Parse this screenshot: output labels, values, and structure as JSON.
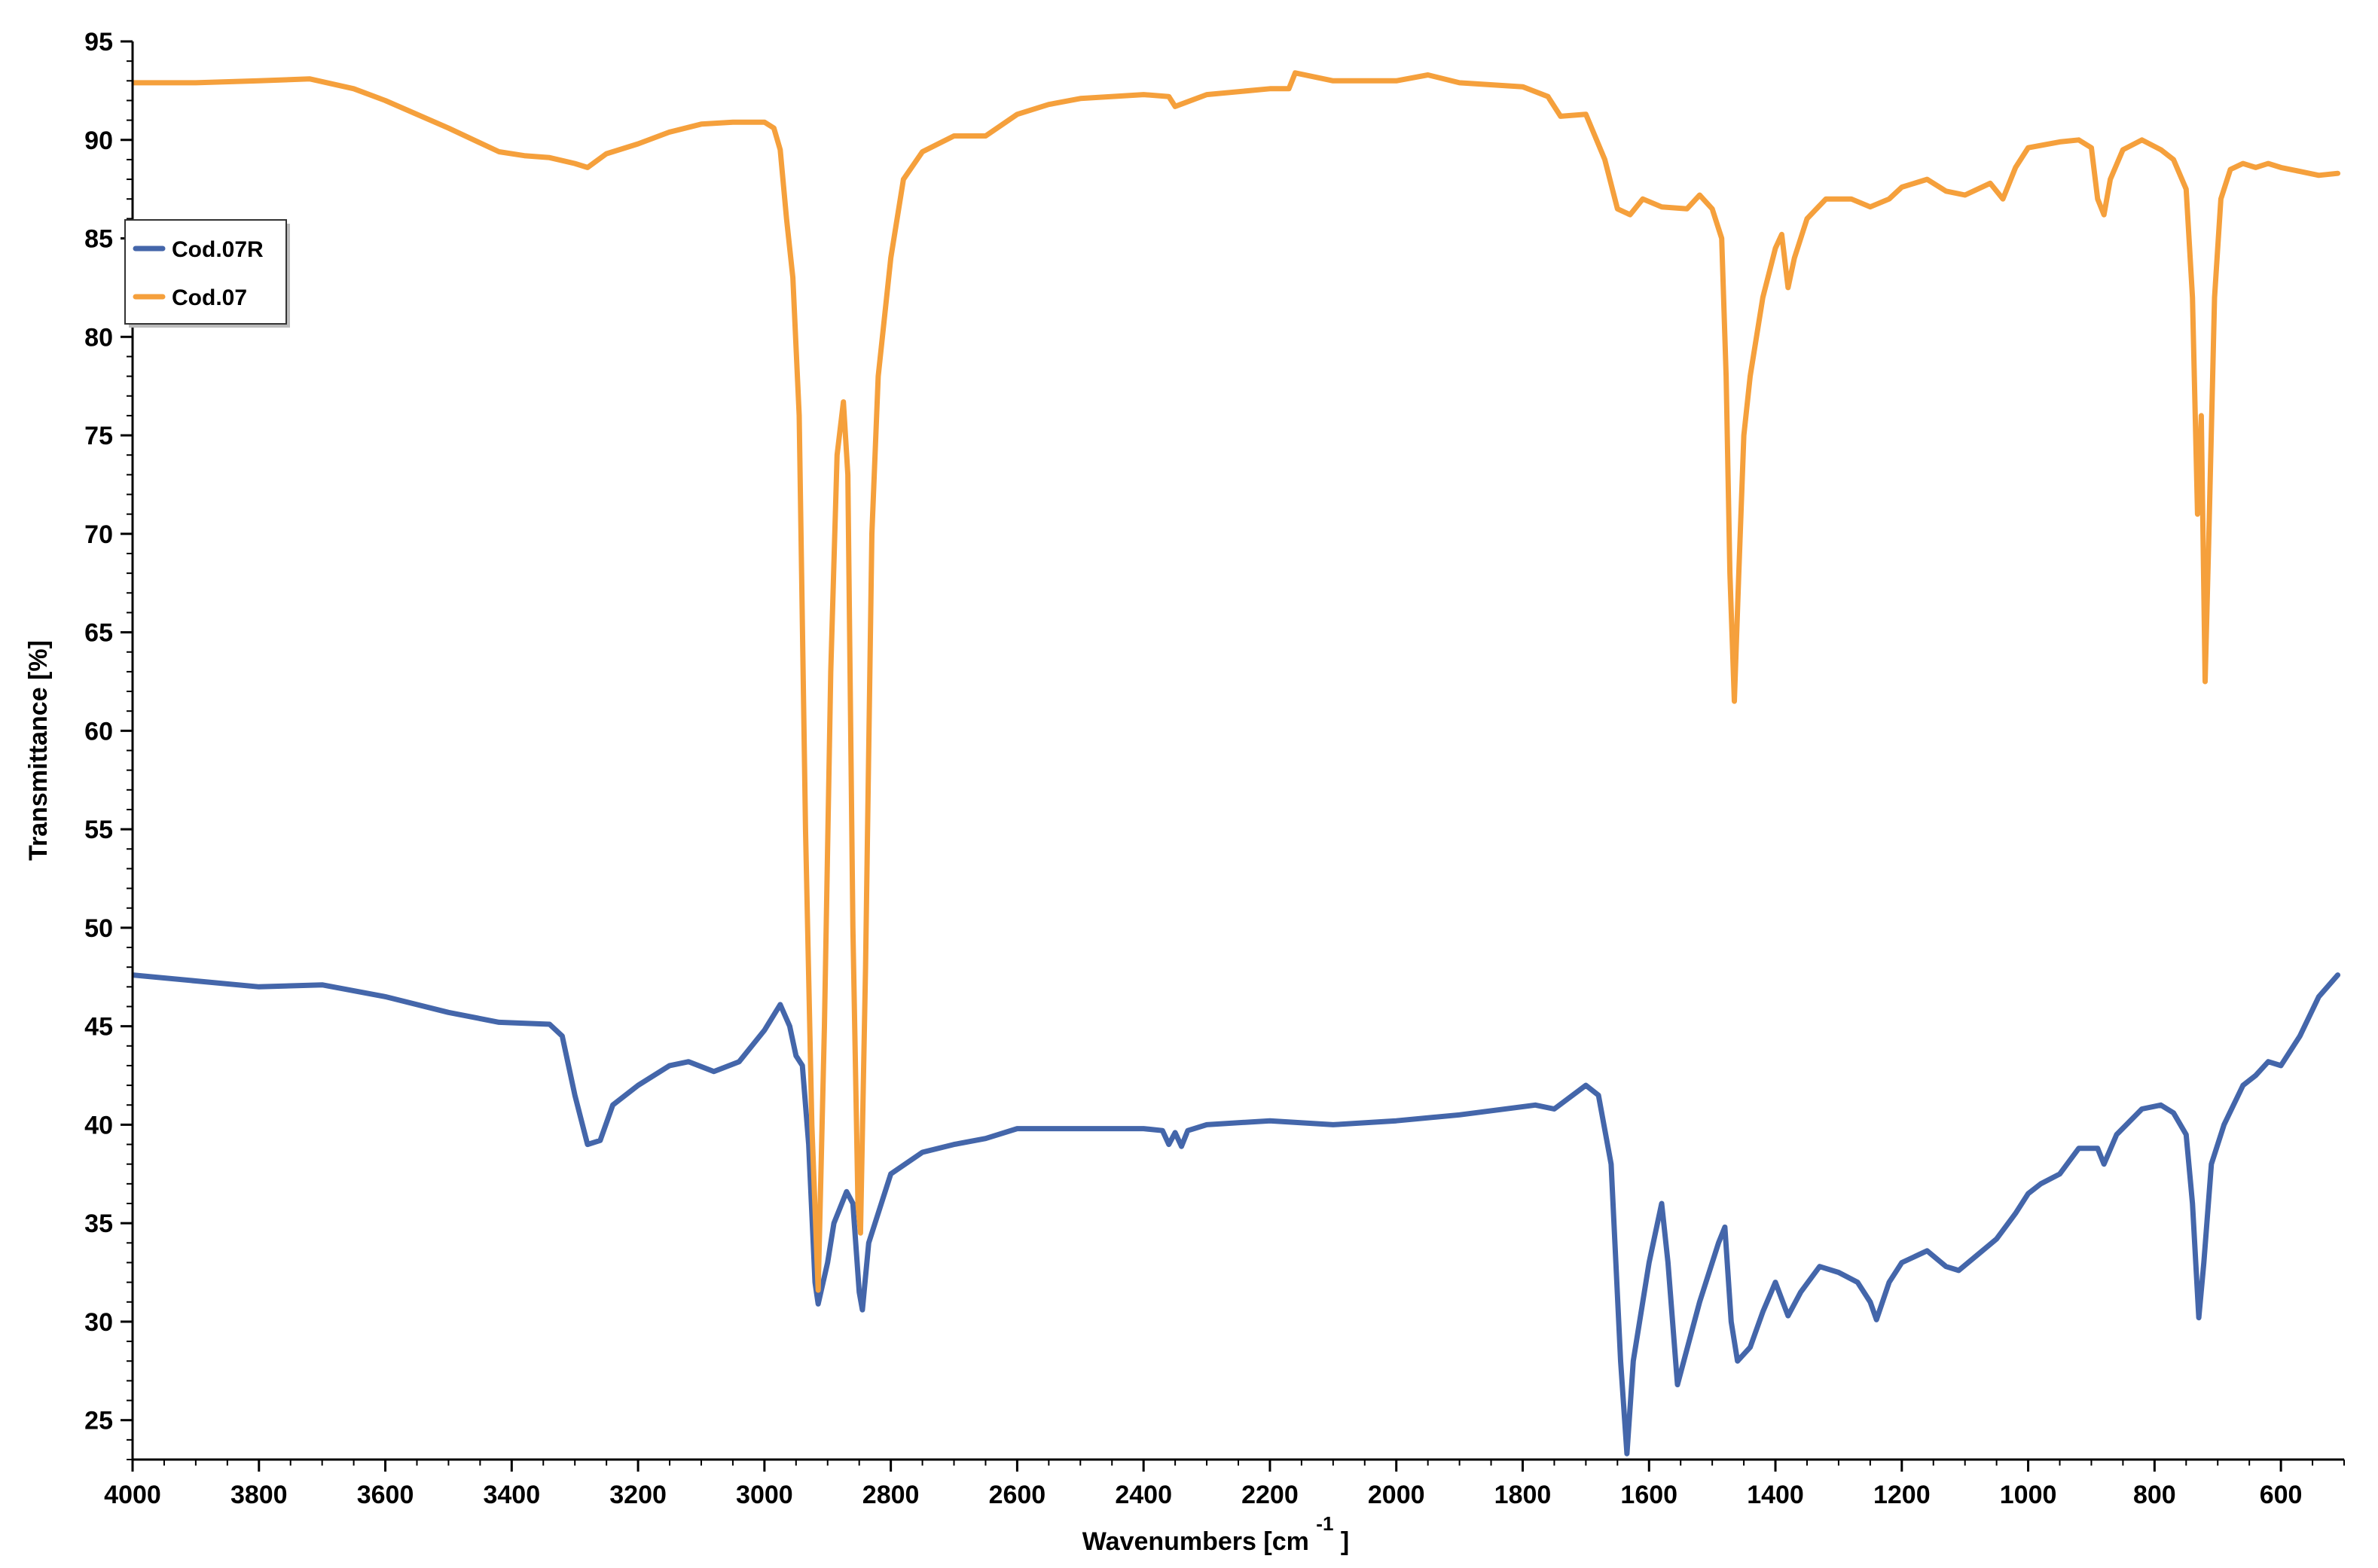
{
  "chart_data": {
    "type": "line",
    "title": "",
    "xlabel": "Wavenumbers [cm",
    "xlabel_superscript": "-1",
    "xlabel_suffix": "]",
    "ylabel": "Transmittance [%]",
    "xlim": [
      4000,
      500
    ],
    "ylim": [
      23,
      95
    ],
    "x_reversed": true,
    "x_ticks": [
      "4000",
      "3800",
      "3600",
      "3400",
      "3200",
      "3000",
      "2800",
      "2600",
      "2400",
      "2200",
      "2000",
      "1800",
      "1600",
      "1400",
      "1200",
      "1000",
      "800",
      "600"
    ],
    "x_tick_values": [
      4000,
      3800,
      3600,
      3400,
      3200,
      3000,
      2800,
      2600,
      2400,
      2200,
      2000,
      1800,
      1600,
      1400,
      1200,
      1000,
      800,
      600
    ],
    "y_ticks": [
      "25",
      "30",
      "35",
      "40",
      "45",
      "50",
      "55",
      "60",
      "65",
      "70",
      "75",
      "80",
      "85",
      "90",
      "95"
    ],
    "y_tick_values": [
      25,
      30,
      35,
      40,
      45,
      50,
      55,
      60,
      65,
      70,
      75,
      80,
      85,
      90,
      95
    ],
    "grid": false,
    "legend": {
      "position": "top-left",
      "entries": [
        "Cod.07R",
        "Cod.07"
      ]
    },
    "series": [
      {
        "name": "Cod.07R",
        "color": "#4466aa",
        "points": [
          [
            4000,
            47.6
          ],
          [
            3900,
            47.3
          ],
          [
            3800,
            47.0
          ],
          [
            3700,
            47.1
          ],
          [
            3600,
            46.5
          ],
          [
            3500,
            45.7
          ],
          [
            3420,
            45.2
          ],
          [
            3340,
            45.1
          ],
          [
            3320,
            44.5
          ],
          [
            3300,
            41.5
          ],
          [
            3280,
            39.0
          ],
          [
            3260,
            39.2
          ],
          [
            3240,
            41.0
          ],
          [
            3200,
            42.0
          ],
          [
            3150,
            43.0
          ],
          [
            3120,
            43.2
          ],
          [
            3080,
            42.7
          ],
          [
            3040,
            43.2
          ],
          [
            3000,
            44.8
          ],
          [
            2975,
            46.1
          ],
          [
            2960,
            45.0
          ],
          [
            2950,
            43.5
          ],
          [
            2940,
            43.0
          ],
          [
            2930,
            39.0
          ],
          [
            2920,
            32.0
          ],
          [
            2915,
            30.9
          ],
          [
            2900,
            33.0
          ],
          [
            2890,
            35.0
          ],
          [
            2870,
            36.6
          ],
          [
            2860,
            36.0
          ],
          [
            2850,
            31.5
          ],
          [
            2845,
            30.6
          ],
          [
            2835,
            34.0
          ],
          [
            2800,
            37.5
          ],
          [
            2750,
            38.6
          ],
          [
            2700,
            39.0
          ],
          [
            2650,
            39.3
          ],
          [
            2600,
            39.8
          ],
          [
            2500,
            39.8
          ],
          [
            2400,
            39.8
          ],
          [
            2370,
            39.7
          ],
          [
            2360,
            39.0
          ],
          [
            2350,
            39.6
          ],
          [
            2340,
            38.9
          ],
          [
            2330,
            39.7
          ],
          [
            2300,
            40.0
          ],
          [
            2200,
            40.2
          ],
          [
            2100,
            40.0
          ],
          [
            2000,
            40.2
          ],
          [
            1900,
            40.5
          ],
          [
            1780,
            41.0
          ],
          [
            1750,
            40.8
          ],
          [
            1700,
            42.0
          ],
          [
            1680,
            41.5
          ],
          [
            1660,
            38.0
          ],
          [
            1645,
            28.0
          ],
          [
            1635,
            23.3
          ],
          [
            1625,
            28.0
          ],
          [
            1600,
            33.0
          ],
          [
            1580,
            36.0
          ],
          [
            1570,
            33.0
          ],
          [
            1555,
            26.8
          ],
          [
            1545,
            28.0
          ],
          [
            1520,
            31.0
          ],
          [
            1490,
            34.0
          ],
          [
            1480,
            34.8
          ],
          [
            1470,
            30.0
          ],
          [
            1460,
            28.0
          ],
          [
            1440,
            28.7
          ],
          [
            1420,
            30.5
          ],
          [
            1400,
            32.0
          ],
          [
            1380,
            30.3
          ],
          [
            1360,
            31.5
          ],
          [
            1330,
            32.8
          ],
          [
            1300,
            32.5
          ],
          [
            1270,
            32.0
          ],
          [
            1250,
            31.0
          ],
          [
            1240,
            30.1
          ],
          [
            1220,
            32.0
          ],
          [
            1200,
            33.0
          ],
          [
            1160,
            33.6
          ],
          [
            1130,
            32.8
          ],
          [
            1110,
            32.6
          ],
          [
            1080,
            33.4
          ],
          [
            1050,
            34.2
          ],
          [
            1020,
            35.5
          ],
          [
            1000,
            36.5
          ],
          [
            980,
            37.0
          ],
          [
            950,
            37.5
          ],
          [
            920,
            38.8
          ],
          [
            890,
            38.8
          ],
          [
            880,
            38.0
          ],
          [
            860,
            39.5
          ],
          [
            820,
            40.8
          ],
          [
            790,
            41.0
          ],
          [
            770,
            40.6
          ],
          [
            750,
            39.5
          ],
          [
            740,
            36.0
          ],
          [
            730,
            30.2
          ],
          [
            722,
            33.0
          ],
          [
            710,
            38.0
          ],
          [
            690,
            40.0
          ],
          [
            660,
            42.0
          ],
          [
            640,
            42.5
          ],
          [
            620,
            43.2
          ],
          [
            600,
            43.0
          ],
          [
            570,
            44.5
          ],
          [
            540,
            46.5
          ],
          [
            510,
            47.6
          ]
        ]
      },
      {
        "name": "Cod.07",
        "color": "#f5a03c",
        "points": [
          [
            4000,
            92.9
          ],
          [
            3900,
            92.9
          ],
          [
            3800,
            93.0
          ],
          [
            3720,
            93.1
          ],
          [
            3650,
            92.6
          ],
          [
            3600,
            92.0
          ],
          [
            3500,
            90.6
          ],
          [
            3420,
            89.4
          ],
          [
            3380,
            89.2
          ],
          [
            3340,
            89.1
          ],
          [
            3300,
            88.8
          ],
          [
            3280,
            88.6
          ],
          [
            3250,
            89.3
          ],
          [
            3200,
            89.8
          ],
          [
            3150,
            90.4
          ],
          [
            3100,
            90.8
          ],
          [
            3050,
            90.9
          ],
          [
            3000,
            90.9
          ],
          [
            2985,
            90.6
          ],
          [
            2975,
            89.5
          ],
          [
            2965,
            86.0
          ],
          [
            2955,
            83.0
          ],
          [
            2945,
            76.0
          ],
          [
            2935,
            55.0
          ],
          [
            2925,
            40.0
          ],
          [
            2915,
            31.6
          ],
          [
            2905,
            45.0
          ],
          [
            2895,
            63.0
          ],
          [
            2885,
            74.0
          ],
          [
            2875,
            76.7
          ],
          [
            2868,
            73.0
          ],
          [
            2860,
            50.0
          ],
          [
            2852,
            36.0
          ],
          [
            2848,
            34.5
          ],
          [
            2840,
            48.0
          ],
          [
            2830,
            70.0
          ],
          [
            2820,
            78.0
          ],
          [
            2800,
            84.0
          ],
          [
            2780,
            88.0
          ],
          [
            2750,
            89.4
          ],
          [
            2700,
            90.2
          ],
          [
            2650,
            90.2
          ],
          [
            2600,
            91.3
          ],
          [
            2550,
            91.8
          ],
          [
            2500,
            92.1
          ],
          [
            2400,
            92.3
          ],
          [
            2360,
            92.2
          ],
          [
            2350,
            91.7
          ],
          [
            2300,
            92.3
          ],
          [
            2200,
            92.6
          ],
          [
            2170,
            92.6
          ],
          [
            2160,
            93.4
          ],
          [
            2100,
            93.0
          ],
          [
            2000,
            93.0
          ],
          [
            1950,
            93.3
          ],
          [
            1900,
            92.9
          ],
          [
            1800,
            92.7
          ],
          [
            1760,
            92.2
          ],
          [
            1740,
            91.2
          ],
          [
            1700,
            91.3
          ],
          [
            1670,
            89.0
          ],
          [
            1650,
            86.5
          ],
          [
            1630,
            86.2
          ],
          [
            1610,
            87.0
          ],
          [
            1580,
            86.6
          ],
          [
            1540,
            86.5
          ],
          [
            1520,
            87.2
          ],
          [
            1500,
            86.5
          ],
          [
            1485,
            85.0
          ],
          [
            1478,
            78.0
          ],
          [
            1472,
            68.0
          ],
          [
            1465,
            61.5
          ],
          [
            1458,
            68.0
          ],
          [
            1450,
            75.0
          ],
          [
            1440,
            78.0
          ],
          [
            1420,
            82.0
          ],
          [
            1400,
            84.5
          ],
          [
            1390,
            85.2
          ],
          [
            1380,
            82.5
          ],
          [
            1370,
            84.0
          ],
          [
            1350,
            86.0
          ],
          [
            1320,
            87.0
          ],
          [
            1280,
            87.0
          ],
          [
            1250,
            86.6
          ],
          [
            1220,
            87.0
          ],
          [
            1200,
            87.6
          ],
          [
            1160,
            88.0
          ],
          [
            1130,
            87.4
          ],
          [
            1100,
            87.2
          ],
          [
            1060,
            87.8
          ],
          [
            1040,
            87.0
          ],
          [
            1020,
            88.6
          ],
          [
            1000,
            89.6
          ],
          [
            950,
            89.9
          ],
          [
            920,
            90.0
          ],
          [
            900,
            89.6
          ],
          [
            890,
            87.0
          ],
          [
            880,
            86.2
          ],
          [
            870,
            88.0
          ],
          [
            850,
            89.5
          ],
          [
            820,
            90.0
          ],
          [
            790,
            89.5
          ],
          [
            770,
            89.0
          ],
          [
            750,
            87.5
          ],
          [
            740,
            82.0
          ],
          [
            732,
            71.0
          ],
          [
            726,
            76.0
          ],
          [
            720,
            62.5
          ],
          [
            714,
            70.0
          ],
          [
            705,
            82.0
          ],
          [
            695,
            87.0
          ],
          [
            680,
            88.5
          ],
          [
            660,
            88.8
          ],
          [
            640,
            88.6
          ],
          [
            620,
            88.8
          ],
          [
            600,
            88.6
          ],
          [
            570,
            88.4
          ],
          [
            540,
            88.2
          ],
          [
            510,
            88.3
          ]
        ]
      }
    ]
  }
}
